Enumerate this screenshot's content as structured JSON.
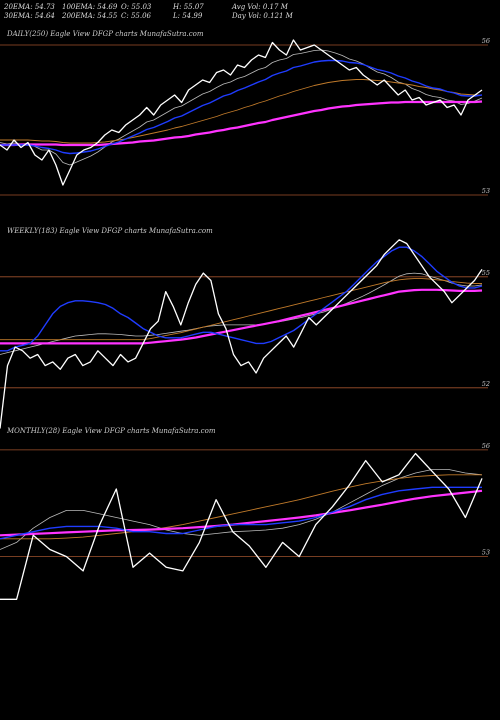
{
  "header": {
    "row1": [
      "20EMA: 54.73",
      "100EMA: 54.69",
      "O: 55.03",
      "H: 55.07",
      "Avg Vol: 0.17 M"
    ],
    "row2": [
      "30EMA: 54.64",
      "200EMA: 54.55",
      "C: 55.06",
      "L: 54.99",
      "Day Vol: 0.121 M"
    ]
  },
  "colors": {
    "price": "#ffffff",
    "ema_fast": "#1f3cff",
    "ema_slow": "#ff33ff",
    "ema_mid": "#c07a2a",
    "ema_grey": "#bbbbbb",
    "level_line": "#a0522d"
  },
  "chart_data": [
    {
      "type": "line",
      "title": "DAILY(250) Eagle   View  DFGP charts MunafaSutra.com",
      "y_ticks": [
        {
          "label": "56",
          "value": 56
        },
        {
          "label": "53",
          "value": 53
        }
      ],
      "ylim": [
        52.7,
        56.3
      ],
      "series": [
        {
          "role": "price",
          "values": [
            54.0,
            53.9,
            54.1,
            53.95,
            54.05,
            53.8,
            53.7,
            53.9,
            53.6,
            53.2,
            53.5,
            53.8,
            53.9,
            53.95,
            54.05,
            54.2,
            54.3,
            54.25,
            54.4,
            54.5,
            54.6,
            54.75,
            54.6,
            54.8,
            54.9,
            55.0,
            54.85,
            55.1,
            55.2,
            55.3,
            55.25,
            55.45,
            55.5,
            55.4,
            55.6,
            55.55,
            55.7,
            55.8,
            55.75,
            56.05,
            55.9,
            55.8,
            56.1,
            55.9,
            55.95,
            56.0,
            55.9,
            55.8,
            55.7,
            55.6,
            55.5,
            55.55,
            55.4,
            55.3,
            55.2,
            55.3,
            55.15,
            55.0,
            55.1,
            54.9,
            54.95,
            54.8,
            54.85,
            54.9,
            54.75,
            54.8,
            54.6,
            54.9,
            55.0,
            55.1
          ]
        },
        {
          "role": "ema_fast",
          "values": [
            54.0,
            54.0,
            54.0,
            54.0,
            54.0,
            53.98,
            53.95,
            53.93,
            53.9,
            53.85,
            53.83,
            53.84,
            53.86,
            53.88,
            53.92,
            53.97,
            54.02,
            54.06,
            54.12,
            54.18,
            54.24,
            54.31,
            54.35,
            54.41,
            54.47,
            54.54,
            54.58,
            54.65,
            54.72,
            54.79,
            54.84,
            54.91,
            54.98,
            55.02,
            55.09,
            55.14,
            55.2,
            55.26,
            55.31,
            55.39,
            55.44,
            55.48,
            55.55,
            55.58,
            55.62,
            55.66,
            55.68,
            55.69,
            55.69,
            55.68,
            55.65,
            55.64,
            55.61,
            55.56,
            55.51,
            55.48,
            55.44,
            55.38,
            55.34,
            55.28,
            55.24,
            55.18,
            55.14,
            55.12,
            55.07,
            55.04,
            54.99,
            54.98,
            54.98,
            55.0
          ]
        },
        {
          "role": "ema_slow",
          "values": [
            54.0,
            54.0,
            54.0,
            54.01,
            54.01,
            54.01,
            54.01,
            54.01,
            54.01,
            54.0,
            54.0,
            54.0,
            54.0,
            54.0,
            54.0,
            54.01,
            54.02,
            54.03,
            54.04,
            54.05,
            54.07,
            54.08,
            54.09,
            54.11,
            54.13,
            54.15,
            54.16,
            54.18,
            54.21,
            54.23,
            54.25,
            54.28,
            54.3,
            54.33,
            54.35,
            54.38,
            54.41,
            54.44,
            54.46,
            54.5,
            54.53,
            54.56,
            54.59,
            54.62,
            54.65,
            54.68,
            54.7,
            54.73,
            54.75,
            54.77,
            54.78,
            54.8,
            54.81,
            54.82,
            54.83,
            54.84,
            54.85,
            54.85,
            54.86,
            54.86,
            54.86,
            54.86,
            54.86,
            54.86,
            54.86,
            54.86,
            54.86,
            54.86,
            54.86,
            54.87
          ]
        },
        {
          "role": "ema_mid",
          "values": [
            54.1,
            54.1,
            54.1,
            54.1,
            54.1,
            54.09,
            54.08,
            54.08,
            54.07,
            54.05,
            54.04,
            54.04,
            54.04,
            54.04,
            54.05,
            54.06,
            54.08,
            54.1,
            54.12,
            54.15,
            54.18,
            54.21,
            54.24,
            54.27,
            54.3,
            54.34,
            54.37,
            54.41,
            54.45,
            54.49,
            54.53,
            54.57,
            54.62,
            54.66,
            54.7,
            54.75,
            54.79,
            54.84,
            54.88,
            54.93,
            54.98,
            55.02,
            55.07,
            55.11,
            55.15,
            55.19,
            55.22,
            55.25,
            55.27,
            55.29,
            55.3,
            55.31,
            55.31,
            55.3,
            55.29,
            55.28,
            55.26,
            55.24,
            55.22,
            55.2,
            55.17,
            55.15,
            55.12,
            55.1,
            55.07,
            55.05,
            55.02,
            55.01,
            55.0,
            55.0
          ]
        },
        {
          "role": "ema_grey",
          "values": [
            54.05,
            54.02,
            54.04,
            54.02,
            54.03,
            53.97,
            53.9,
            53.9,
            53.82,
            53.65,
            53.6,
            53.66,
            53.72,
            53.78,
            53.86,
            53.96,
            54.06,
            54.12,
            54.2,
            54.28,
            54.36,
            54.46,
            54.5,
            54.58,
            54.66,
            54.74,
            54.78,
            54.86,
            54.94,
            55.02,
            55.07,
            55.15,
            55.22,
            55.26,
            55.33,
            55.37,
            55.44,
            55.51,
            55.55,
            55.65,
            55.7,
            55.73,
            55.81,
            55.83,
            55.86,
            55.89,
            55.9,
            55.88,
            55.84,
            55.79,
            55.72,
            55.68,
            55.62,
            55.54,
            55.46,
            55.42,
            55.35,
            55.26,
            55.22,
            55.13,
            55.08,
            55.01,
            54.97,
            54.95,
            54.9,
            54.88,
            54.81,
            54.83,
            54.88,
            54.94
          ]
        }
      ]
    },
    {
      "type": "line",
      "title": "WEEKLY(183) Eagle   View  DFGP charts MunafaSutra.com",
      "y_ticks": [
        {
          "label": "55",
          "value": 55
        },
        {
          "label": "52",
          "value": 52
        }
      ],
      "ylim": [
        51.4,
        56.4
      ],
      "series": [
        {
          "role": "price",
          "values": [
            50.9,
            52.6,
            53.1,
            53.0,
            52.8,
            52.9,
            52.6,
            52.7,
            52.5,
            52.8,
            52.9,
            52.6,
            52.7,
            53.0,
            52.8,
            52.6,
            52.9,
            52.7,
            52.8,
            53.2,
            53.6,
            53.8,
            54.6,
            54.2,
            53.7,
            54.3,
            54.8,
            55.1,
            54.9,
            54.0,
            53.6,
            52.9,
            52.6,
            52.7,
            52.4,
            52.8,
            53.0,
            53.2,
            53.4,
            53.1,
            53.5,
            53.9,
            53.7,
            53.9,
            54.1,
            54.3,
            54.5,
            54.7,
            54.9,
            55.1,
            55.3,
            55.6,
            55.8,
            56.0,
            55.9,
            55.6,
            55.3,
            55.0,
            54.8,
            54.6,
            54.3,
            54.5,
            54.7,
            54.9,
            55.2
          ]
        },
        {
          "role": "ema_fast",
          "values": [
            53.0,
            53.0,
            53.1,
            53.15,
            53.2,
            53.4,
            53.7,
            54.0,
            54.2,
            54.3,
            54.35,
            54.35,
            54.33,
            54.3,
            54.25,
            54.15,
            54.0,
            53.9,
            53.75,
            53.6,
            53.5,
            53.4,
            53.35,
            53.35,
            53.35,
            53.4,
            53.45,
            53.5,
            53.5,
            53.45,
            53.4,
            53.35,
            53.3,
            53.25,
            53.2,
            53.2,
            53.25,
            53.35,
            53.45,
            53.55,
            53.7,
            53.85,
            54.0,
            54.15,
            54.3,
            54.45,
            54.6,
            54.8,
            55.0,
            55.2,
            55.4,
            55.55,
            55.7,
            55.8,
            55.8,
            55.7,
            55.55,
            55.35,
            55.15,
            55.0,
            54.85,
            54.75,
            54.7,
            54.7,
            54.75
          ]
        },
        {
          "role": "ema_slow",
          "values": [
            53.2,
            53.2,
            53.2,
            53.2,
            53.2,
            53.2,
            53.2,
            53.2,
            53.2,
            53.2,
            53.2,
            53.2,
            53.2,
            53.2,
            53.2,
            53.2,
            53.2,
            53.2,
            53.2,
            53.2,
            53.22,
            53.24,
            53.26,
            53.28,
            53.3,
            53.33,
            53.36,
            53.4,
            53.44,
            53.48,
            53.52,
            53.56,
            53.6,
            53.64,
            53.68,
            53.72,
            53.76,
            53.8,
            53.85,
            53.9,
            53.95,
            54.0,
            54.05,
            54.1,
            54.15,
            54.2,
            54.25,
            54.3,
            54.35,
            54.4,
            54.45,
            54.5,
            54.55,
            54.6,
            54.62,
            54.64,
            54.65,
            54.65,
            54.65,
            54.64,
            54.63,
            54.62,
            54.62,
            54.62,
            54.63
          ]
        },
        {
          "role": "ema_mid",
          "values": [
            53.3,
            53.3,
            53.3,
            53.3,
            53.3,
            53.3,
            53.3,
            53.3,
            53.3,
            53.3,
            53.3,
            53.3,
            53.3,
            53.3,
            53.3,
            53.3,
            53.3,
            53.3,
            53.3,
            53.3,
            53.33,
            53.37,
            53.41,
            53.45,
            53.49,
            53.54,
            53.59,
            53.64,
            53.69,
            53.74,
            53.79,
            53.84,
            53.89,
            53.94,
            53.99,
            54.04,
            54.09,
            54.14,
            54.19,
            54.24,
            54.29,
            54.34,
            54.39,
            54.44,
            54.49,
            54.54,
            54.59,
            54.64,
            54.69,
            54.74,
            54.79,
            54.84,
            54.88,
            54.92,
            54.94,
            54.95,
            54.95,
            54.94,
            54.92,
            54.9,
            54.87,
            54.85,
            54.83,
            54.82,
            54.82
          ]
        },
        {
          "role": "ema_grey",
          "values": [
            52.9,
            52.95,
            53.0,
            53.05,
            53.1,
            53.15,
            53.2,
            53.25,
            53.3,
            53.35,
            53.4,
            53.42,
            53.44,
            53.46,
            53.46,
            53.45,
            53.44,
            53.42,
            53.4,
            53.4,
            53.42,
            53.44,
            53.47,
            53.5,
            53.53,
            53.56,
            53.6,
            53.64,
            53.67,
            53.69,
            53.7,
            53.7,
            53.7,
            53.7,
            53.7,
            53.72,
            53.75,
            53.78,
            53.82,
            53.86,
            53.9,
            53.95,
            54.0,
            54.05,
            54.12,
            54.2,
            54.28,
            54.37,
            54.46,
            54.56,
            54.67,
            54.78,
            54.9,
            55.02,
            55.08,
            55.1,
            55.08,
            55.02,
            54.96,
            54.9,
            54.83,
            54.78,
            54.75,
            54.75,
            54.78
          ]
        }
      ]
    },
    {
      "type": "line",
      "title": "MONTHLY(28) Eagle   View  DFGP charts MunafaSutra.com",
      "y_ticks": [
        {
          "label": "56",
          "value": 56
        },
        {
          "label": "53",
          "value": 53
        }
      ],
      "ylim": [
        51.5,
        56.7
      ],
      "series": [
        {
          "role": "price",
          "values": [
            51.8,
            51.8,
            53.6,
            53.2,
            53.0,
            52.6,
            53.9,
            54.9,
            52.7,
            53.1,
            52.7,
            52.6,
            53.4,
            54.6,
            53.7,
            53.3,
            52.7,
            53.4,
            53.0,
            53.9,
            54.4,
            55.0,
            55.7,
            55.1,
            55.3,
            55.9,
            55.4,
            54.9,
            54.1,
            55.2
          ]
        },
        {
          "role": "ema_fast",
          "values": [
            53.5,
            53.6,
            53.7,
            53.8,
            53.85,
            53.85,
            53.85,
            53.8,
            53.7,
            53.7,
            53.65,
            53.65,
            53.75,
            53.85,
            53.9,
            53.9,
            53.9,
            53.95,
            54.0,
            54.1,
            54.25,
            54.4,
            54.6,
            54.75,
            54.85,
            54.9,
            54.95,
            54.95,
            54.95,
            54.95
          ]
        },
        {
          "role": "ema_slow",
          "values": [
            53.6,
            53.62,
            53.64,
            53.66,
            53.68,
            53.7,
            53.72,
            53.74,
            53.75,
            53.76,
            53.78,
            53.8,
            53.83,
            53.86,
            53.9,
            53.95,
            54.0,
            54.05,
            54.1,
            54.16,
            54.23,
            54.3,
            54.38,
            54.46,
            54.55,
            54.63,
            54.7,
            54.75,
            54.8,
            54.85
          ]
        },
        {
          "role": "ema_mid",
          "values": [
            53.5,
            53.5,
            53.5,
            53.5,
            53.52,
            53.55,
            53.6,
            53.65,
            53.7,
            53.75,
            53.82,
            53.9,
            54.0,
            54.1,
            54.2,
            54.3,
            54.4,
            54.5,
            54.6,
            54.72,
            54.84,
            54.95,
            55.05,
            55.13,
            55.2,
            55.25,
            55.28,
            55.3,
            55.3,
            55.3
          ]
        },
        {
          "role": "ema_grey",
          "values": [
            53.2,
            53.4,
            53.8,
            54.1,
            54.3,
            54.3,
            54.2,
            54.1,
            54.0,
            53.9,
            53.75,
            53.65,
            53.6,
            53.65,
            53.7,
            53.72,
            53.75,
            53.8,
            53.9,
            54.05,
            54.25,
            54.5,
            54.75,
            55.0,
            55.2,
            55.35,
            55.45,
            55.45,
            55.35,
            55.3
          ]
        }
      ]
    }
  ]
}
